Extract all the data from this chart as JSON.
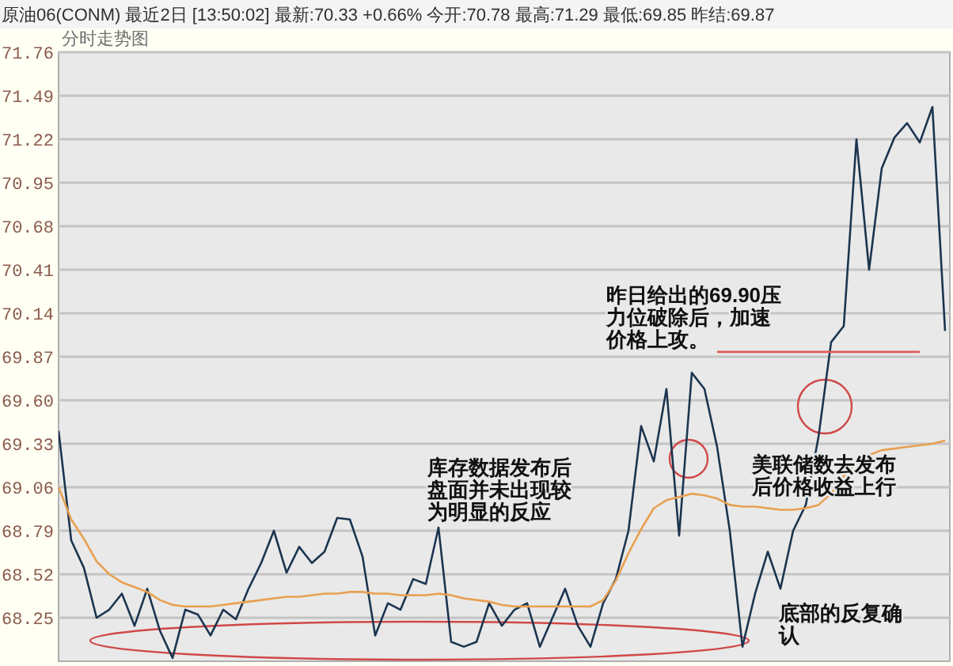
{
  "chart_data": {
    "type": "line",
    "title": "原油06(CONM)  最近2日     [13:50:02] 最新:70.33 +0.66%  今开:70.78  最高:71.29  最低:69.85  昨结:69.87",
    "subtitle": "分时走势图",
    "categories": [
      null,
      null,
      null,
      null,
      null,
      null,
      null,
      null,
      null,
      null,
      null,
      null,
      null,
      null,
      null,
      null,
      null,
      null,
      null,
      null,
      null,
      null,
      null,
      null,
      null,
      null,
      null,
      null,
      null,
      null,
      null,
      null,
      null,
      null,
      null,
      null,
      null,
      null,
      null,
      null,
      null,
      null,
      null,
      null,
      null,
      null,
      null,
      null,
      null,
      null,
      null,
      null,
      null,
      null,
      null,
      null,
      null,
      null,
      null,
      null,
      null,
      null,
      null,
      null,
      null,
      null,
      null,
      null,
      null,
      null,
      null
    ],
    "series": [
      {
        "color": "#1c3550",
        "values": [
          69.41,
          68.73,
          68.56,
          68.25,
          68.3,
          68.4,
          68.2,
          68.43,
          68.17,
          68.0,
          68.3,
          68.27,
          68.14,
          68.3,
          68.24,
          68.43,
          68.59,
          68.79,
          68.53,
          68.69,
          68.59,
          68.66,
          68.87,
          68.86,
          68.63,
          68.14,
          68.34,
          68.3,
          68.49,
          68.46,
          68.81,
          68.1,
          68.07,
          68.1,
          68.34,
          68.2,
          68.3,
          68.34,
          68.07,
          68.25,
          68.43,
          68.2,
          68.07,
          68.34,
          68.49,
          68.79,
          69.44,
          69.22,
          69.67,
          68.76,
          69.77,
          69.67,
          69.31,
          68.79,
          68.07,
          68.4,
          68.66,
          68.43,
          68.79,
          68.95,
          69.37,
          69.96,
          70.06,
          71.22,
          70.41,
          71.04,
          71.23,
          71.32,
          71.2,
          71.42,
          70.03
        ]
      },
      {
        "color": "#e8a050",
        "values": [
          69.06,
          68.86,
          68.74,
          68.6,
          68.52,
          68.47,
          68.44,
          68.41,
          68.36,
          68.33,
          68.32,
          68.32,
          68.32,
          68.33,
          68.34,
          68.35,
          68.36,
          68.37,
          68.38,
          68.38,
          68.39,
          68.4,
          68.4,
          68.41,
          68.41,
          68.4,
          68.4,
          68.39,
          68.39,
          68.39,
          68.4,
          68.39,
          68.37,
          68.36,
          68.35,
          68.33,
          68.32,
          68.32,
          68.32,
          68.32,
          68.32,
          68.32,
          68.32,
          68.36,
          68.48,
          68.65,
          68.8,
          68.93,
          68.98,
          69.0,
          69.02,
          69.01,
          68.99,
          68.95,
          68.94,
          68.94,
          68.93,
          68.92,
          68.92,
          68.93,
          68.95,
          69.02,
          69.13,
          69.21,
          69.26,
          69.29,
          69.3,
          69.31,
          69.32,
          69.33,
          69.35
        ]
      },
      {
        "color": "#e05a5a",
        "values": [
          null,
          null,
          null,
          null,
          null,
          null,
          null,
          null,
          null,
          null,
          null,
          null,
          null,
          null,
          null,
          null,
          null,
          null,
          null,
          null,
          null,
          null,
          null,
          null,
          null,
          null,
          null,
          null,
          null,
          null,
          null,
          null,
          null,
          null,
          null,
          null,
          null,
          null,
          null,
          null,
          null,
          null,
          null,
          null,
          null,
          null,
          null,
          null,
          null,
          null,
          null,
          null,
          69.9,
          69.9,
          69.9,
          69.9,
          69.9,
          69.9,
          69.9,
          69.9,
          69.9,
          69.9,
          69.9,
          69.9,
          69.9,
          69.9,
          69.9,
          69.9,
          69.9,
          null,
          null
        ]
      }
    ],
    "ylim": [
      67.98,
      71.76
    ],
    "yticks": [
      {
        "value": 71.76,
        "label": "71.76"
      },
      {
        "value": 71.49,
        "label": "71.49"
      },
      {
        "value": 71.22,
        "label": "71.22"
      },
      {
        "value": 70.95,
        "label": "70.95"
      },
      {
        "value": 70.68,
        "label": "70.68"
      },
      {
        "value": 70.41,
        "label": "70.41"
      },
      {
        "value": 70.14,
        "label": "70.14"
      },
      {
        "value": 69.87,
        "label": "69.87"
      },
      {
        "value": 69.6,
        "label": "69.60"
      },
      {
        "value": 69.33,
        "label": "69.33"
      },
      {
        "value": 69.06,
        "label": "69.06"
      },
      {
        "value": 68.79,
        "label": "68.79"
      },
      {
        "value": 68.52,
        "label": "68.52"
      },
      {
        "value": 68.25,
        "label": "68.25"
      }
    ],
    "grid": "y",
    "tick_labels": "y",
    "annotations": [
      "昨日给出的69.90压力位破除后，加速价格上攻。",
      "库存数据发布后盘面并未出现较为明显的反应",
      "美联储数去发布后价格收益上行",
      "底部的反复确认"
    ]
  }
}
